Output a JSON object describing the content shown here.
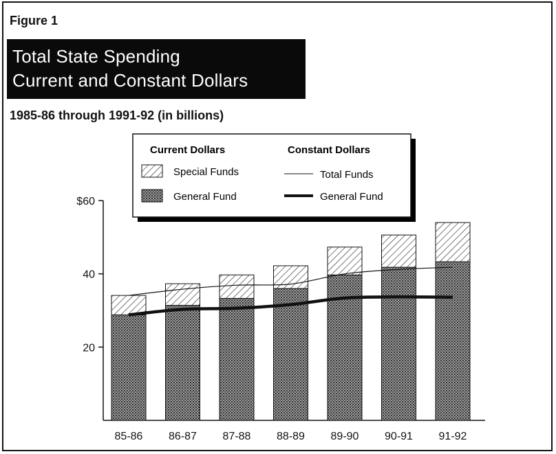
{
  "figure_label": "Figure 1",
  "title_line1": "Total State Spending",
  "title_line2": "Current and Constant Dollars",
  "subtitle": "1985-86 through 1991-92 (in billions)",
  "legend": {
    "current_heading": "Current Dollars",
    "constant_heading": "Constant Dollars",
    "special_funds": "Special Funds",
    "general_fund_bar": "General Fund",
    "total_funds": "Total Funds",
    "general_fund_line": "General Fund"
  },
  "chart_data": {
    "type": "bar",
    "categories": [
      "85-86",
      "86-87",
      "87-88",
      "88-89",
      "89-90",
      "90-91",
      "91-92"
    ],
    "series": [
      {
        "name": "General Fund",
        "kind": "stacked-bar",
        "values": [
          28.8,
          31.4,
          33.3,
          36.0,
          39.7,
          41.8,
          43.3
        ]
      },
      {
        "name": "Special Funds",
        "kind": "stacked-bar",
        "values": [
          5.3,
          5.9,
          6.4,
          6.2,
          7.6,
          8.8,
          10.7
        ]
      },
      {
        "name": "Total Funds",
        "kind": "line",
        "values": [
          34.1,
          35.8,
          36.9,
          37.2,
          40.0,
          41.2,
          41.8
        ]
      },
      {
        "name": "General Fund",
        "kind": "line",
        "values": [
          28.8,
          30.3,
          30.6,
          31.6,
          33.4,
          33.7,
          33.6
        ]
      }
    ],
    "ylim": [
      0,
      60
    ],
    "yticks": [
      20,
      40,
      60
    ],
    "ytick_labels": [
      "20",
      "40",
      "$60"
    ],
    "legend_position": "top-center",
    "grid": false
  }
}
